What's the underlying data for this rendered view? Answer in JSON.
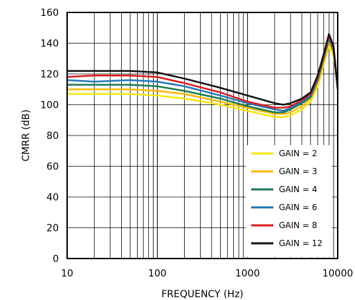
{
  "chart_data": {
    "type": "line",
    "xlabel": "FREQUENCY (Hz)",
    "ylabel": "CMRR (dB)",
    "xscale": "log",
    "xlim": [
      10,
      10000
    ],
    "ylim": [
      0,
      160
    ],
    "xticks": [
      10,
      100,
      1000,
      10000
    ],
    "xtick_labels": [
      "10",
      "100",
      "1000",
      "10000"
    ],
    "yticks": [
      0,
      20,
      40,
      60,
      80,
      100,
      120,
      140,
      160
    ],
    "ytick_labels": [
      "0",
      "20",
      "40",
      "60",
      "80",
      "100",
      "120",
      "140",
      "160"
    ],
    "grid": true,
    "legend_position": "bottom-right",
    "x": [
      10,
      20,
      50,
      100,
      200,
      500,
      1000,
      2000,
      2500,
      3000,
      4000,
      5000,
      6000,
      7000,
      8000,
      9000,
      10000
    ],
    "series": [
      {
        "name": "GAIN = 2",
        "color": "#f5e612",
        "values": [
          107,
          107,
          107,
          106,
          104,
          100,
          96,
          92,
          92,
          93,
          97,
          102,
          112,
          126,
          138,
          132,
          112
        ]
      },
      {
        "name": "GAIN = 3",
        "color": "#ffb800",
        "values": [
          110,
          110,
          110,
          109,
          107,
          102,
          98,
          94,
          94,
          95,
          99,
          104,
          114,
          128,
          141,
          134,
          112
        ]
      },
      {
        "name": "GAIN = 4",
        "color": "#1a7a52",
        "values": [
          113,
          113,
          113,
          112,
          109,
          104,
          99,
          95,
          95,
          97,
          101,
          105,
          116,
          130,
          143,
          135,
          111
        ]
      },
      {
        "name": "GAIN = 6",
        "color": "#2277b8",
        "values": [
          116,
          115,
          116,
          115,
          112,
          106,
          101,
          97,
          96,
          98,
          102,
          106,
          117,
          131,
          144,
          136,
          111
        ]
      },
      {
        "name": "GAIN = 8",
        "color": "#e01b1b",
        "values": [
          118,
          119,
          119,
          118,
          114,
          108,
          102,
          98,
          98,
          99,
          103,
          107,
          118,
          132,
          145,
          137,
          110
        ]
      },
      {
        "name": "GAIN = 12",
        "color": "#111111",
        "values": [
          122,
          122,
          122,
          121,
          117,
          111,
          106,
          101,
          100,
          101,
          104,
          108,
          119,
          133,
          146,
          138,
          110
        ]
      }
    ]
  }
}
